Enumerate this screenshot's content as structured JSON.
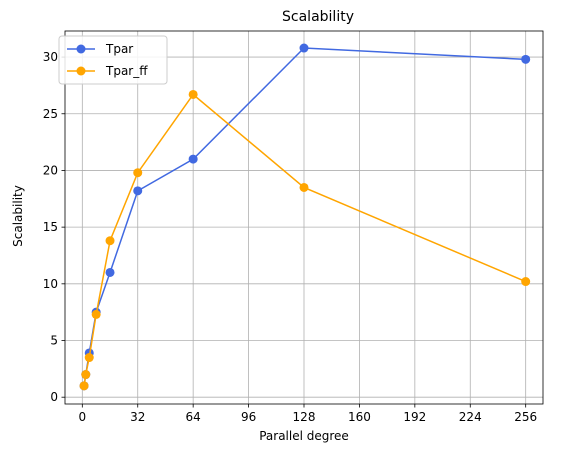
{
  "chart_data": {
    "type": "line",
    "title": "Scalability",
    "xlabel": "Parallel degree",
    "ylabel": "Scalability",
    "xlim": [
      -10,
      266
    ],
    "ylim": [
      -0.6,
      32.3
    ],
    "xticks": [
      0,
      32,
      64,
      96,
      128,
      160,
      192,
      224,
      256
    ],
    "yticks": [
      0,
      5,
      10,
      15,
      20,
      25,
      30
    ],
    "grid": true,
    "legend_position": "top-left",
    "series": [
      {
        "name": "Tpar",
        "color": "#4169e1",
        "marker": "circle",
        "x": [
          1,
          2,
          4,
          8,
          16,
          32,
          64,
          128,
          256
        ],
        "y": [
          1.0,
          2.0,
          3.9,
          7.5,
          11.0,
          18.2,
          21.0,
          30.8,
          29.8
        ]
      },
      {
        "name": "Tpar_ff",
        "color": "#ffa500",
        "marker": "circle",
        "x": [
          1,
          2,
          4,
          8,
          16,
          32,
          64,
          128,
          256
        ],
        "y": [
          1.0,
          2.0,
          3.5,
          7.3,
          13.8,
          19.8,
          26.7,
          18.5,
          10.2
        ]
      }
    ]
  }
}
